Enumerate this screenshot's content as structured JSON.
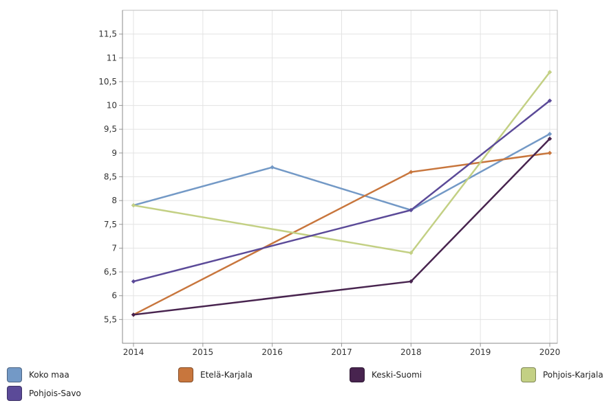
{
  "chart_data": {
    "type": "line",
    "title": "",
    "xlabel": "",
    "ylabel": "",
    "x": [
      2014,
      2016,
      2018,
      2020
    ],
    "x_ticks": [
      "2014",
      "2015",
      "2016",
      "2017",
      "2018",
      "2019",
      "2020"
    ],
    "xlim": [
      2014,
      2020
    ],
    "ylim": [
      5,
      12
    ],
    "y_ticks": [
      "5,5",
      "6",
      "6,5",
      "7",
      "7,5",
      "8",
      "8,5",
      "9",
      "9,5",
      "10",
      "10,5",
      "11",
      "11,5"
    ],
    "grid": true,
    "legend_position": "bottom",
    "series": [
      {
        "name": "Koko maa",
        "color": "#7399c6",
        "values": [
          7.9,
          8.7,
          7.8,
          9.4
        ]
      },
      {
        "name": "Etelä-Karjala",
        "color": "#c8763d",
        "values": [
          5.6,
          null,
          8.6,
          9.0
        ]
      },
      {
        "name": "Keski-Suomi",
        "color": "#48244f",
        "values": [
          5.6,
          null,
          6.3,
          9.3
        ]
      },
      {
        "name": "Pohjois-Karjala",
        "color": "#c3d084",
        "values": [
          7.9,
          null,
          6.9,
          10.7
        ]
      },
      {
        "name": "Pohjois-Savo",
        "color": "#5b4a98",
        "values": [
          6.3,
          null,
          7.8,
          10.1
        ]
      }
    ]
  }
}
